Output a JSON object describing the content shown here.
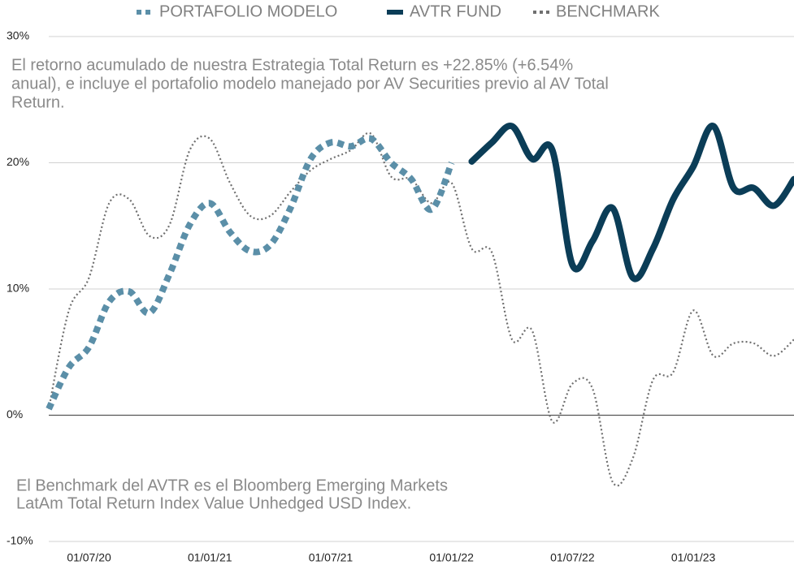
{
  "chart_data": {
    "type": "line",
    "categories": [
      null,
      null,
      "01/07/20",
      null,
      null,
      null,
      null,
      null,
      "01/01/21",
      null,
      null,
      null,
      null,
      null,
      "01/07/21",
      null,
      null,
      null,
      null,
      null,
      "01/01/22",
      null,
      null,
      null,
      null,
      null,
      "01/07/22",
      null,
      null,
      null,
      null,
      null,
      "01/01/23",
      null,
      null,
      null,
      null,
      null
    ],
    "series": [
      {
        "name": "PORTAFOLIO MODELO",
        "color": "#5b8fa8",
        "style": "dashed",
        "values": [
          0.5,
          3.8,
          5.4,
          9,
          9.8,
          8.1,
          11.2,
          15.1,
          16.8,
          14.5,
          13,
          13.5,
          16.4,
          20.3,
          21.6,
          21.3,
          21.9,
          20,
          18.7,
          16.3,
          20,
          null,
          null,
          null,
          null,
          null,
          null,
          null,
          null,
          null,
          null,
          null,
          null,
          null,
          null,
          null,
          null,
          null
        ]
      },
      {
        "name": "AVTR FUND",
        "color": "#0b3d57",
        "style": "solid",
        "values": [
          null,
          null,
          null,
          null,
          null,
          null,
          null,
          null,
          null,
          null,
          null,
          null,
          null,
          null,
          null,
          null,
          null,
          null,
          null,
          null,
          null,
          20.1,
          21.6,
          22.9,
          20.3,
          21,
          11.9,
          13.8,
          16.4,
          10.9,
          13.2,
          17.1,
          19.7,
          22.9,
          18,
          18,
          16.6,
          18.7
        ]
      },
      {
        "name": "BENCHMARK",
        "color": "#707070",
        "style": "dotted",
        "values": [
          0.5,
          8.3,
          10.9,
          16.8,
          17.1,
          14.2,
          15.1,
          21,
          21.9,
          18.4,
          15.8,
          15.8,
          17.7,
          19.4,
          20.3,
          21,
          22.3,
          18.9,
          18.7,
          16.8,
          18.4,
          13.2,
          12.9,
          6,
          6.7,
          -0.5,
          2.5,
          2.1,
          -5.3,
          -3.4,
          2.8,
          3.4,
          8.3,
          4.7,
          5.7,
          5.7,
          4.7,
          6
        ]
      }
    ],
    "ylim": [
      -10,
      30
    ],
    "yticks": [
      {
        "value": 30,
        "label": "30%"
      },
      {
        "value": 20,
        "label": "20%"
      },
      {
        "value": 10,
        "label": "10%"
      },
      {
        "value": 0,
        "label": "0%"
      },
      {
        "value": -10,
        "label": "-10%"
      }
    ],
    "grid": true,
    "legend": "top",
    "annotations": [
      [
        "El retorno acumulado de nuestra Estrategia Total Return es  +22.85% (+6.54%",
        "anual), e incluye el portafolio modelo manejado por AV Securities  previo al AV Total",
        "Return."
      ],
      [
        "El Benchmark del AVTR es el Bloomberg Emerging Markets",
        "LatAm Total Return Index Value Unhedged USD Index."
      ]
    ]
  }
}
